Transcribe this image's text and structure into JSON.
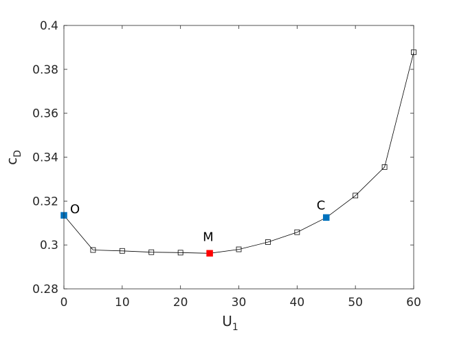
{
  "chart_data": {
    "type": "line",
    "xlabel": "U",
    "xlabel_sub": "1",
    "ylabel": "c",
    "ylabel_sub": "D",
    "xlim": [
      0,
      60
    ],
    "ylim": [
      0.28,
      0.4
    ],
    "xticks": [
      0,
      10,
      20,
      30,
      40,
      50,
      60
    ],
    "xtick_labels": [
      "0",
      "10",
      "20",
      "30",
      "40",
      "50",
      "60"
    ],
    "yticks": [
      0.28,
      0.3,
      0.32,
      0.34,
      0.36,
      0.38,
      0.4
    ],
    "ytick_labels": [
      "0.28",
      "0.3",
      "0.32",
      "0.34",
      "0.36",
      "0.38",
      "0.4"
    ],
    "grid": false,
    "series": [
      {
        "x": [
          0,
          5,
          10,
          15,
          20,
          25,
          30,
          35,
          40,
          45,
          50,
          55,
          60
        ],
        "y": [
          0.3135,
          0.2977,
          0.2973,
          0.2967,
          0.2965,
          0.2962,
          0.298,
          0.3013,
          0.3058,
          0.3125,
          0.3225,
          0.3355,
          0.3878
        ]
      }
    ],
    "annotations": [
      {
        "label": "O",
        "x": 0,
        "y": 0.3135,
        "color": "#0072bd"
      },
      {
        "label": "M",
        "x": 25,
        "y": 0.2962,
        "color": "#ff0000"
      },
      {
        "label": "C",
        "x": 45,
        "y": 0.3125,
        "color": "#0072bd"
      }
    ]
  }
}
